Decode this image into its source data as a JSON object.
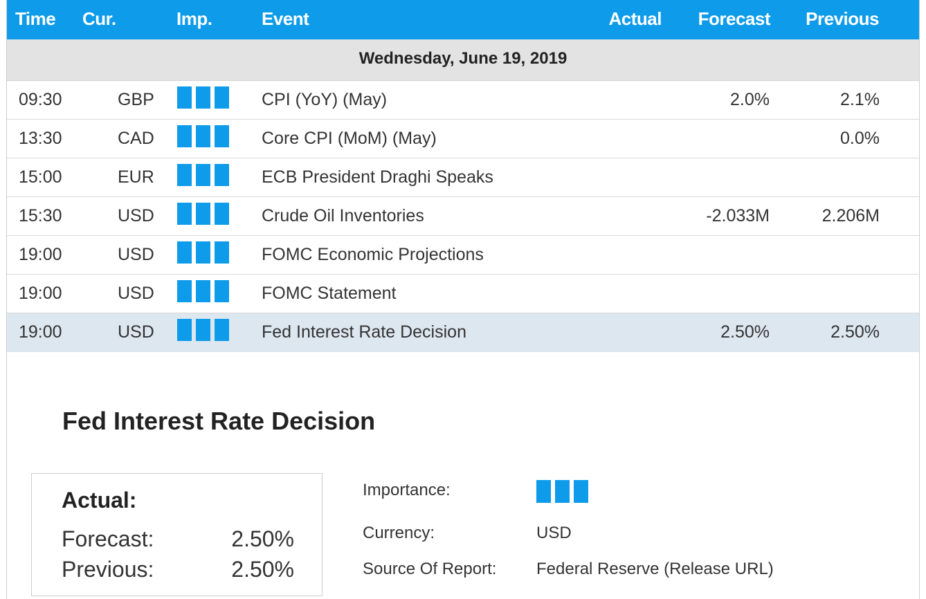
{
  "header": {
    "time": "Time",
    "currency": "Cur.",
    "importance": "Imp.",
    "event": "Event",
    "actual": "Actual",
    "forecast": "Forecast",
    "previous": "Previous"
  },
  "date_label": "Wednesday, June 19, 2019",
  "rows": [
    {
      "time": "09:30",
      "currency": "GBP",
      "importance_bars": 3,
      "event": "CPI (YoY) (May)",
      "actual": "",
      "forecast": "2.0%",
      "previous": "2.1%"
    },
    {
      "time": "13:30",
      "currency": "CAD",
      "importance_bars": 3,
      "event": "Core CPI (MoM) (May)",
      "actual": "",
      "forecast": "",
      "previous": "0.0%"
    },
    {
      "time": "15:00",
      "currency": "EUR",
      "importance_bars": 3,
      "event": "ECB President Draghi Speaks",
      "actual": "",
      "forecast": "",
      "previous": ""
    },
    {
      "time": "15:30",
      "currency": "USD",
      "importance_bars": 3,
      "event": "Crude Oil Inventories",
      "actual": "",
      "forecast": "-2.033M",
      "previous": "2.206M"
    },
    {
      "time": "19:00",
      "currency": "USD",
      "importance_bars": 3,
      "event": "FOMC Economic Projections",
      "actual": "",
      "forecast": "",
      "previous": ""
    },
    {
      "time": "19:00",
      "currency": "USD",
      "importance_bars": 3,
      "event": "FOMC Statement",
      "actual": "",
      "forecast": "",
      "previous": ""
    },
    {
      "time": "19:00",
      "currency": "USD",
      "importance_bars": 3,
      "event": "Fed Interest Rate Decision",
      "actual": "",
      "forecast": "2.50%",
      "previous": "2.50%"
    }
  ],
  "detail": {
    "title": "Fed Interest Rate Decision",
    "actual_label": "Actual:",
    "forecast_label": "Forecast:",
    "forecast_value": "2.50%",
    "previous_label": "Previous:",
    "previous_value": "2.50%",
    "importance_label": "Importance:",
    "importance_bars": 3,
    "currency_label": "Currency:",
    "currency_value": "USD",
    "source_label": "Source Of Report:",
    "source_value": "Federal Reserve (Release URL)"
  },
  "colors": {
    "accent": "#0d9bea",
    "selected_row": "#dde7f0",
    "date_row": "#e3e3e3"
  }
}
